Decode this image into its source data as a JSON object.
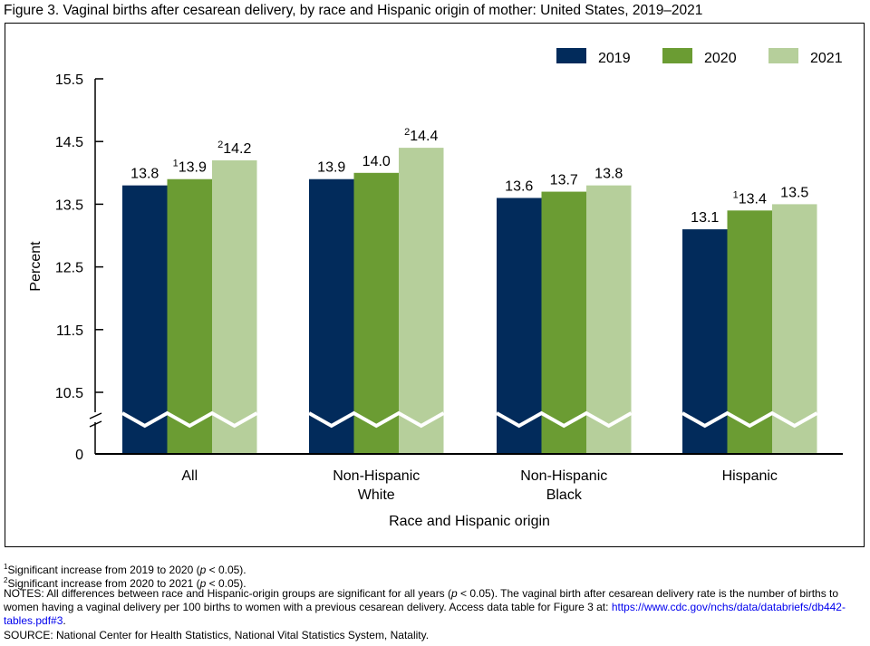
{
  "title": "Figure 3. Vaginal births after cesarean delivery, by race and Hispanic origin of mother: United States, 2019–2021",
  "chart_data": {
    "type": "bar",
    "categories": [
      [
        "All"
      ],
      [
        "Non-Hispanic",
        "White"
      ],
      [
        "Non-Hispanic",
        "Black"
      ],
      [
        "Hispanic"
      ]
    ],
    "series": [
      {
        "name": "2019",
        "color": "#022b5b",
        "values": [
          13.8,
          13.9,
          13.6,
          13.1
        ],
        "marks": [
          "",
          "",
          "",
          ""
        ]
      },
      {
        "name": "2020",
        "color": "#6b9c33",
        "values": [
          13.9,
          14.0,
          13.7,
          13.4
        ],
        "marks": [
          "1",
          "",
          "",
          "1"
        ]
      },
      {
        "name": "2021",
        "color": "#b6cf9b",
        "values": [
          14.2,
          14.4,
          13.8,
          13.5
        ],
        "marks": [
          "2",
          "2",
          "",
          ""
        ]
      }
    ],
    "xlabel": "Race and Hispanic origin",
    "ylabel": "Percent",
    "yticks": [
      "15.5",
      "14.5",
      "13.5",
      "12.5",
      "11.5",
      "10.5",
      "0"
    ],
    "ylim": [
      10.5,
      15.5
    ],
    "axis_break": true,
    "legend": "top-right"
  },
  "notes": {
    "n1_sup": "1",
    "n1": "Significant increase from 2019 to 2020 (",
    "p": "p",
    "n1_end": " < 0.05).",
    "n2_sup": "2",
    "n2": "Significant increase from 2020 to 2021 (",
    "n2_end": " < 0.05).",
    "notes_a": "NOTES: All differences between race and Hispanic-origin groups are significant for all years (",
    "notes_b": " < 0.05). The vaginal birth after cesarean delivery rate is the number of births to women having a vaginal delivery per 100 births to women with a previous cesarean delivery. Access data table for Figure 3 at: ",
    "link": "https://www.cdc.gov/nchs/data/databriefs/db442-tables.pdf#3",
    "link_end": ".",
    "source": "SOURCE: National Center for Health Statistics, National Vital Statistics System, Natality."
  }
}
